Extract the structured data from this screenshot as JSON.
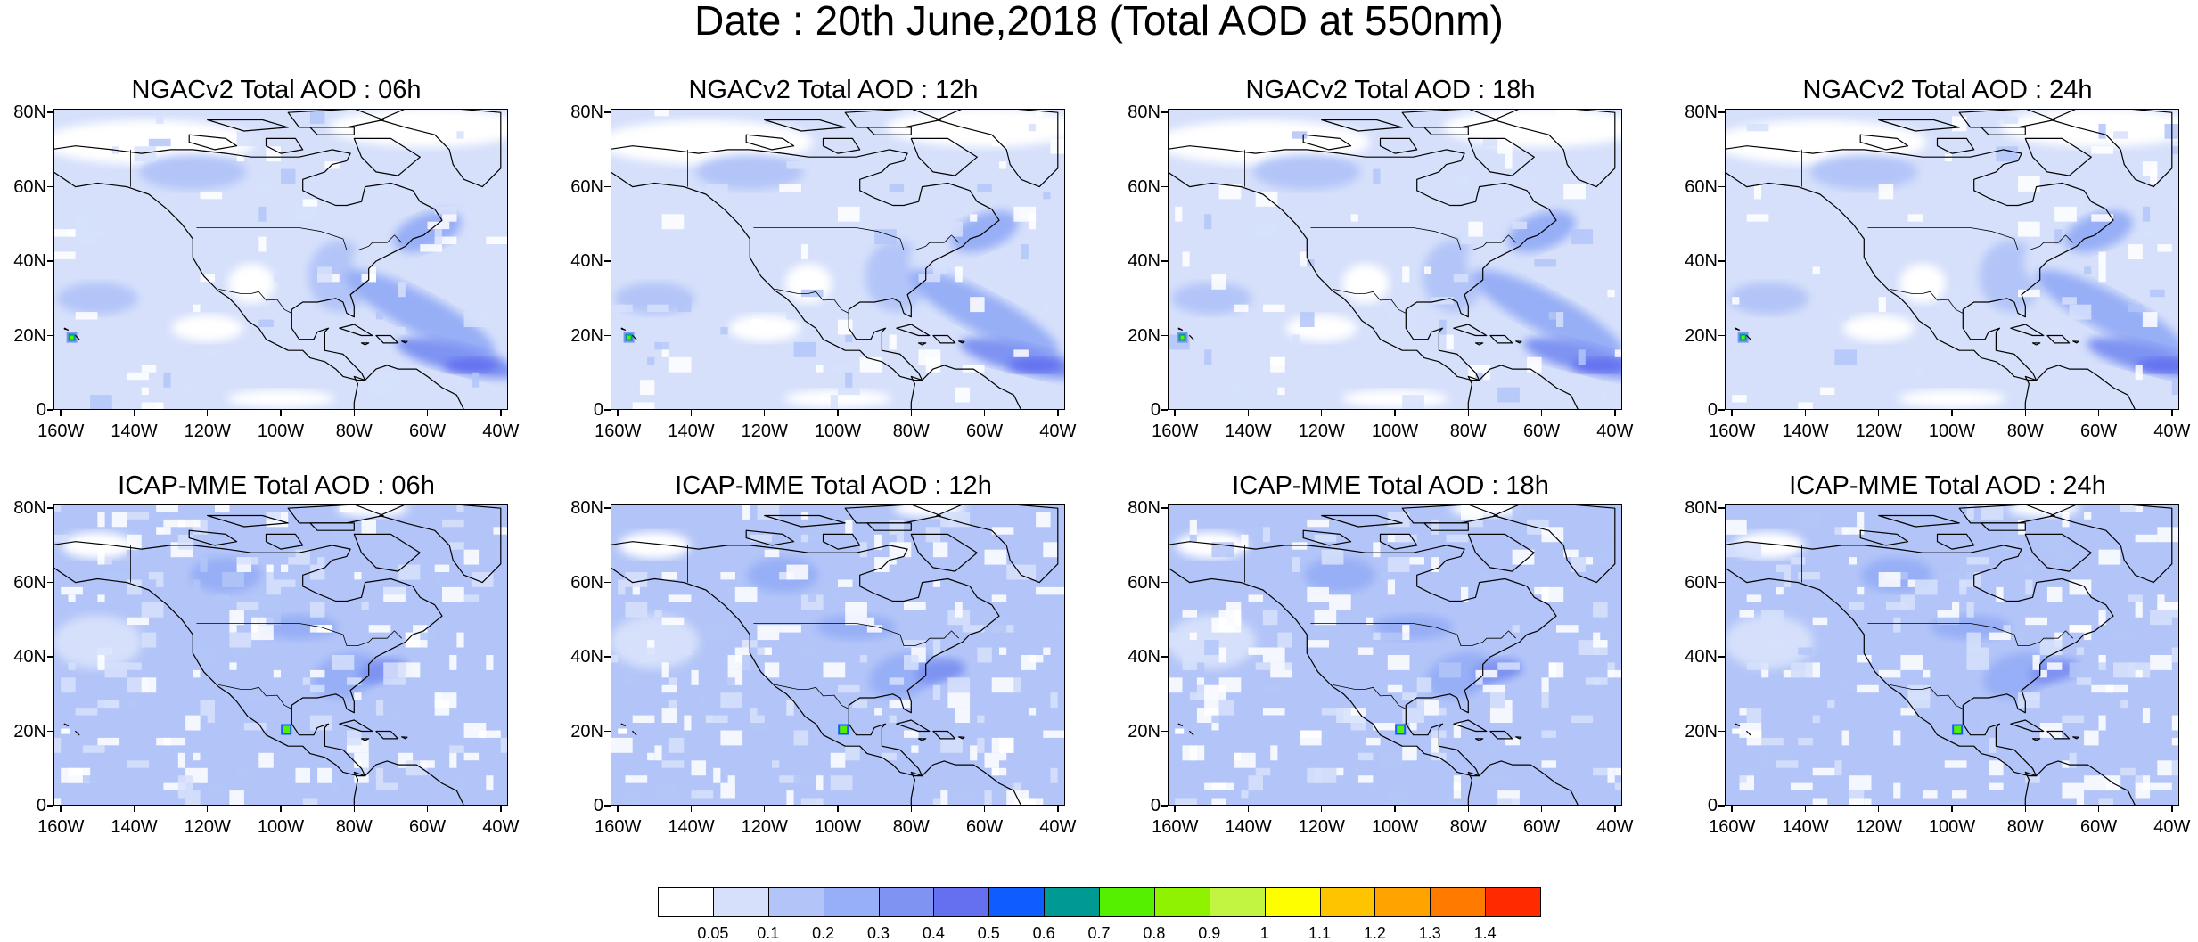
{
  "title": "Date : 20th June,2018 (Total AOD at 550nm)",
  "panels": [
    {
      "title": "NGACv2 Total AOD : 06h",
      "model": "ngac",
      "hour": 6
    },
    {
      "title": "NGACv2 Total AOD : 12h",
      "model": "ngac",
      "hour": 12
    },
    {
      "title": "NGACv2 Total AOD : 18h",
      "model": "ngac",
      "hour": 18
    },
    {
      "title": "NGACv2 Total AOD : 24h",
      "model": "ngac",
      "hour": 24
    },
    {
      "title": "ICAP-MME Total AOD : 06h",
      "model": "icap",
      "hour": 6
    },
    {
      "title": "ICAP-MME Total AOD : 12h",
      "model": "icap",
      "hour": 12
    },
    {
      "title": "ICAP-MME Total AOD : 18h",
      "model": "icap",
      "hour": 18
    },
    {
      "title": "ICAP-MME Total AOD : 24h",
      "model": "icap",
      "hour": 24
    }
  ],
  "lat_labels": [
    "0",
    "20N",
    "40N",
    "60N",
    "80N"
  ],
  "lon_labels": [
    "160W",
    "140W",
    "120W",
    "100W",
    "80W",
    "60W",
    "40W"
  ],
  "colorbar": {
    "colors": [
      "#ffffff",
      "#d6e0fb",
      "#b3c5f8",
      "#97aff6",
      "#7e93f2",
      "#6470f0",
      "#0f5cff",
      "#009a94",
      "#55ef00",
      "#8ff200",
      "#c2f542",
      "#fffe00",
      "#ffc400",
      "#ffa300",
      "#ff7b00",
      "#ff2a00"
    ],
    "labels": [
      "0.05",
      "0.1",
      "0.2",
      "0.3",
      "0.4",
      "0.5",
      "0.6",
      "0.7",
      "0.8",
      "0.9",
      "1",
      "1.1",
      "1.2",
      "1.3",
      "1.4"
    ]
  }
}
